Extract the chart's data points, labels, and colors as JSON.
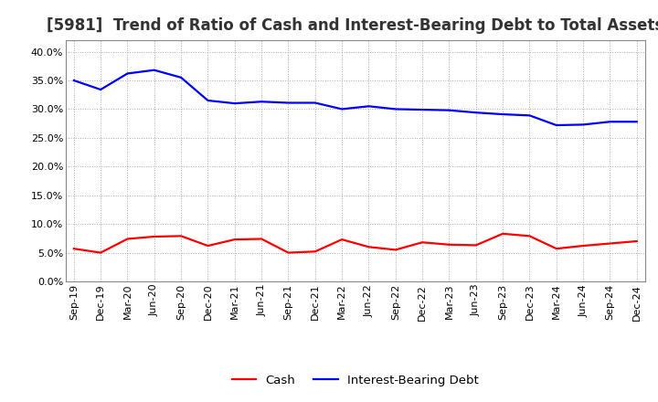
{
  "title": "[5981]  Trend of Ratio of Cash and Interest-Bearing Debt to Total Assets",
  "labels": [
    "Sep-19",
    "Dec-19",
    "Mar-20",
    "Jun-20",
    "Sep-20",
    "Dec-20",
    "Mar-21",
    "Jun-21",
    "Sep-21",
    "Dec-21",
    "Mar-22",
    "Jun-22",
    "Sep-22",
    "Dec-22",
    "Mar-23",
    "Jun-23",
    "Sep-23",
    "Dec-23",
    "Mar-24",
    "Jun-24",
    "Sep-24",
    "Dec-24"
  ],
  "cash": [
    0.057,
    0.05,
    0.074,
    0.078,
    0.079,
    0.062,
    0.073,
    0.074,
    0.05,
    0.052,
    0.073,
    0.06,
    0.055,
    0.068,
    0.064,
    0.063,
    0.083,
    0.079,
    0.057,
    0.062,
    0.066,
    0.07
  ],
  "ibd": [
    0.35,
    0.334,
    0.362,
    0.368,
    0.355,
    0.315,
    0.31,
    0.313,
    0.311,
    0.311,
    0.3,
    0.305,
    0.3,
    0.299,
    0.298,
    0.294,
    0.291,
    0.289,
    0.272,
    0.273,
    0.278,
    0.278
  ],
  "cash_color": "#ff0000",
  "ibd_color": "#0000ff",
  "bg_color": "#ffffff",
  "plot_bg_color": "#ffffff",
  "ylim": [
    0.0,
    0.42
  ],
  "yticks": [
    0.0,
    0.05,
    0.1,
    0.15,
    0.2,
    0.25,
    0.3,
    0.35,
    0.4
  ],
  "legend_cash": "Cash",
  "legend_ibd": "Interest-Bearing Debt",
  "grid_color": "#aaaaaa",
  "line_width": 1.6,
  "title_fontsize": 12,
  "title_color": "#333333",
  "tick_fontsize": 8,
  "legend_fontsize": 9.5
}
